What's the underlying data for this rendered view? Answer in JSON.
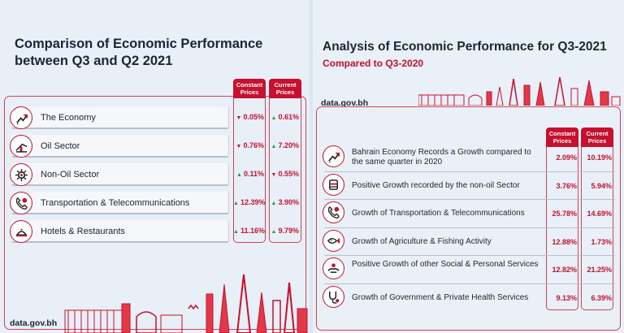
{
  "left": {
    "title": "Comparison of Economic Performance between Q3 and Q2 2021",
    "columns": [
      "Constant Prices",
      "Current Prices"
    ],
    "rows": [
      {
        "label": "The Economy",
        "icon": "chart-up-icon",
        "constant": "0.05%",
        "constant_dir": "down",
        "current": "0.61%",
        "current_dir": "up"
      },
      {
        "label": "Oil Sector",
        "icon": "oil-pump-icon",
        "constant": "0.76%",
        "constant_dir": "down",
        "current": "7.20%",
        "current_dir": "up"
      },
      {
        "label": "Non-Oil Sector",
        "icon": "gear-icon",
        "constant": "0.11%",
        "constant_dir": "up",
        "current": "0.55%",
        "current_dir": "down"
      },
      {
        "label": "Transportation & Telecommunications",
        "icon": "phone-icon",
        "constant": "12.39%",
        "constant_dir": "up",
        "current": "3.90%",
        "current_dir": "up"
      },
      {
        "label": "Hotels & Restaurants",
        "icon": "restaurant-icon",
        "constant": "11.16%",
        "constant_dir": "up",
        "current": "9.79%",
        "current_dir": "up"
      }
    ],
    "url": "data.gov.bh"
  },
  "right": {
    "title": "Analysis of Economic Performance for Q3-2021",
    "subtitle": "Compared to Q3-2020",
    "columns": [
      "Constant Prices",
      "Current Prices"
    ],
    "rows": [
      {
        "label": "Bahrain Economy Records a Growth compared to the same quarter in 2020",
        "icon": "chart-up-icon",
        "constant": "2.09%",
        "current": "10.19%"
      },
      {
        "label": "Positive Growth recorded by the non-oil Sector",
        "icon": "oil-barrel-icon",
        "constant": "3.76%",
        "current": "5.94%"
      },
      {
        "label": "Growth of Transportation & Telecommunications",
        "icon": "phone-icon",
        "constant": "25.78%",
        "current": "14.69%"
      },
      {
        "label": "Growth of Agriculture & Fishing Activity",
        "icon": "fish-icon",
        "constant": "12.88%",
        "current": "1.73%"
      },
      {
        "label": "Positive Growth of other Social & Personal Services",
        "icon": "hands-icon",
        "constant": "12.82%",
        "current": "21.25%"
      },
      {
        "label": "Growth of Government & Private Health Services",
        "icon": "stethoscope-icon",
        "constant": "9.13%",
        "current": "6.39%"
      }
    ],
    "url": "data.gov.bh"
  },
  "colors": {
    "accent": "#c8102e",
    "up": "#2f9a3a",
    "text": "#1d2535"
  }
}
